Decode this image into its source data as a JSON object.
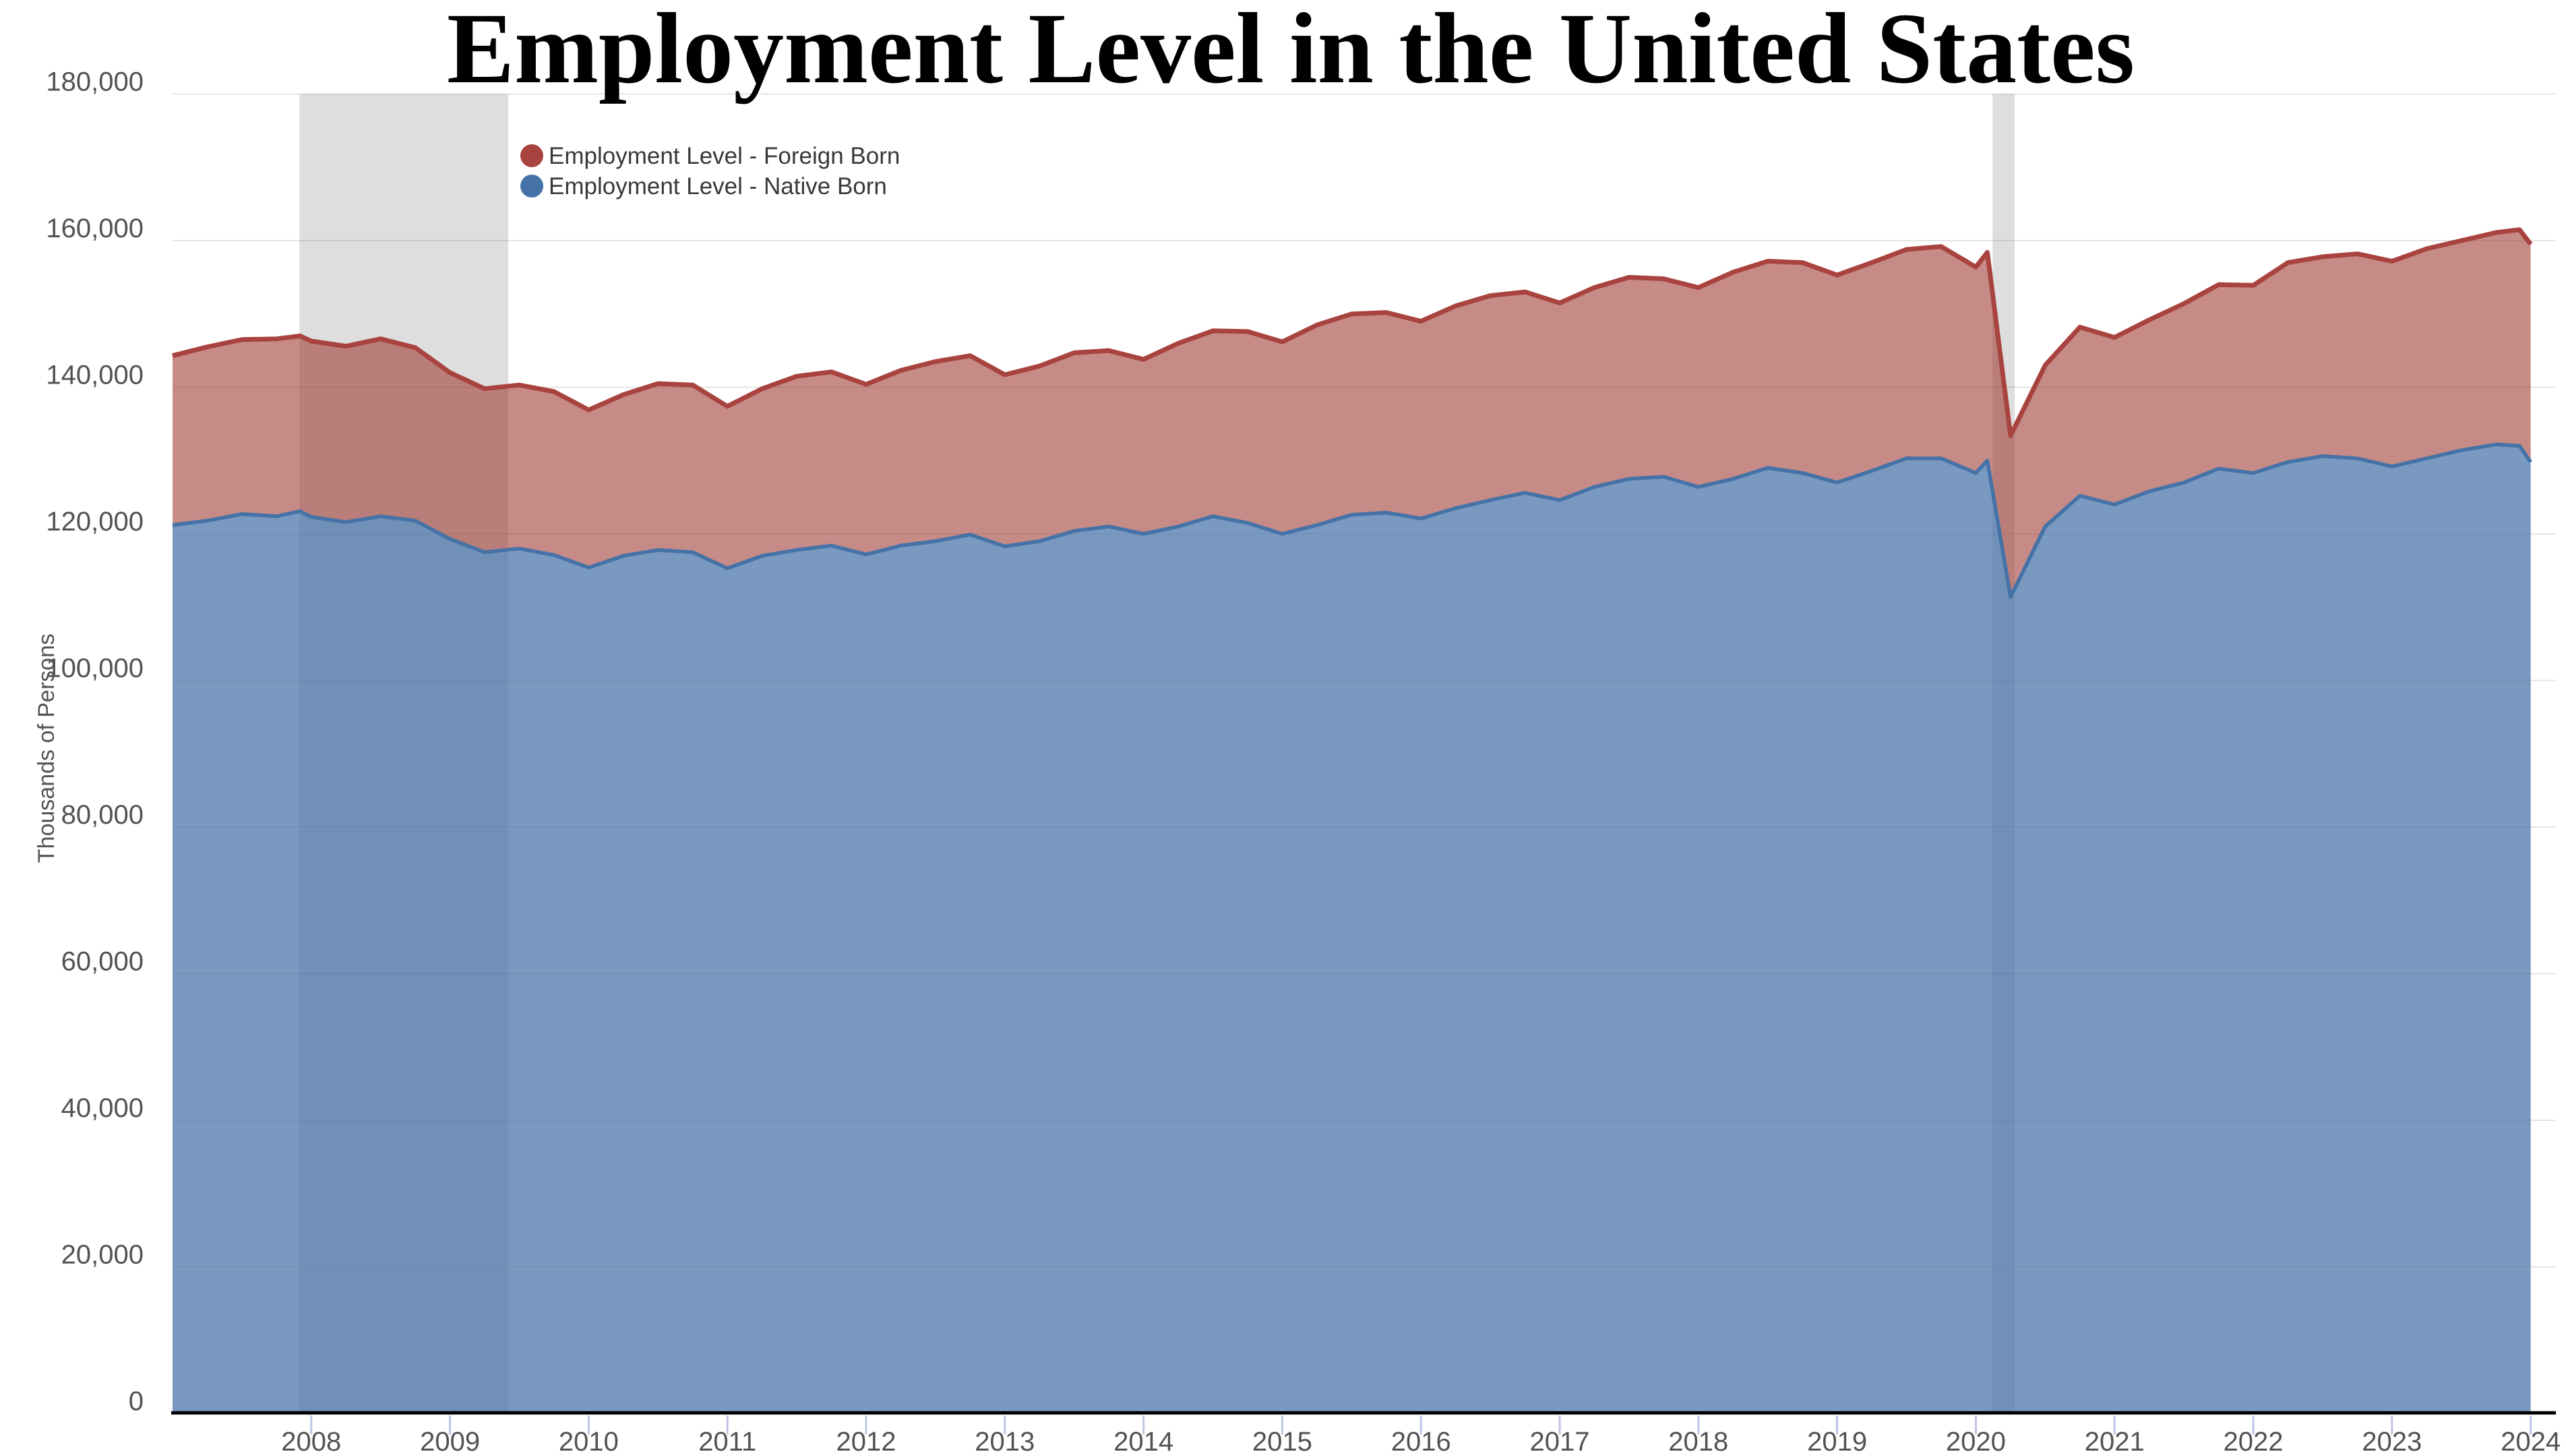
{
  "title": "Employment Level in the United States",
  "y_axis": {
    "title": "Thousands of Persons",
    "ticks": [
      0,
      20000,
      40000,
      60000,
      80000,
      100000,
      120000,
      140000,
      160000,
      180000
    ],
    "tick_labels": [
      "0",
      "20,000",
      "40,000",
      "60,000",
      "80,000",
      "100,000",
      "120,000",
      "140,000",
      "160,000",
      "180,000"
    ],
    "max": 180000
  },
  "x_axis": {
    "ticks": [
      2008,
      2009,
      2010,
      2011,
      2012,
      2013,
      2014,
      2015,
      2016,
      2017,
      2018,
      2019,
      2020,
      2021,
      2022,
      2023,
      2024
    ],
    "tick_labels": [
      "2008",
      "2009",
      "2010",
      "2011",
      "2012",
      "2013",
      "2014",
      "2015",
      "2016",
      "2017",
      "2018",
      "2019",
      "2020",
      "2021",
      "2022",
      "2023",
      "2024"
    ]
  },
  "legend": [
    {
      "label": "Employment Level - Foreign Born",
      "color": "#a8433f"
    },
    {
      "label": "Employment Level - Native Born",
      "color": "#4572a7"
    }
  ],
  "colors": {
    "foreign_line": "#a8433f",
    "foreign_fill_rgba": "rgba(164,67,62,0.62)",
    "native_line": "#4572a7",
    "native_fill_rgba": "rgba(69,114,167,0.72)",
    "recession_band_rgba": "rgba(100,100,100,0.21)",
    "gridline": "#e4e4e4",
    "axis_line": "#000000",
    "tick_mark": "#bec5e4",
    "label_text": "#525252"
  },
  "recessions": [
    {
      "start": 2007.915,
      "end": 2009.42
    },
    {
      "start": 2020.12,
      "end": 2020.28
    }
  ],
  "chart_data": {
    "type": "area",
    "stacked": true,
    "title": "Employment Level in the United States",
    "xlabel": "",
    "ylabel": "Thousands of Persons",
    "ylim": [
      0,
      180000
    ],
    "xlim": [
      2007.0,
      2024.35
    ],
    "grid": true,
    "legend_position": "top-left-inside",
    "x": [
      2007.0,
      2007.25,
      2007.5,
      2007.75,
      2007.92,
      2008.0,
      2008.25,
      2008.5,
      2008.75,
      2009.0,
      2009.25,
      2009.5,
      2009.75,
      2010.0,
      2010.25,
      2010.5,
      2010.75,
      2011.0,
      2011.25,
      2011.5,
      2011.75,
      2012.0,
      2012.25,
      2012.5,
      2012.75,
      2013.0,
      2013.25,
      2013.5,
      2013.75,
      2014.0,
      2014.25,
      2014.5,
      2014.75,
      2015.0,
      2015.25,
      2015.5,
      2015.75,
      2016.0,
      2016.25,
      2016.5,
      2016.75,
      2017.0,
      2017.25,
      2017.5,
      2017.75,
      2018.0,
      2018.25,
      2018.5,
      2018.75,
      2019.0,
      2019.25,
      2019.5,
      2019.75,
      2020.0,
      2020.083,
      2020.25,
      2020.5,
      2020.75,
      2021.0,
      2021.25,
      2021.5,
      2021.75,
      2022.0,
      2022.25,
      2022.5,
      2022.75,
      2023.0,
      2023.25,
      2023.5,
      2023.75,
      2023.92,
      2024.0
    ],
    "series": [
      {
        "name": "Employment Level - Native Born",
        "values": [
          121200,
          121800,
          122700,
          122400,
          123100,
          122300,
          121600,
          122400,
          121800,
          119300,
          117500,
          118000,
          117100,
          115400,
          117000,
          117800,
          117500,
          115300,
          117000,
          117800,
          118400,
          117200,
          118400,
          119000,
          119900,
          118300,
          119000,
          120400,
          121000,
          120000,
          121000,
          122400,
          121500,
          120000,
          121200,
          122600,
          122900,
          122100,
          123500,
          124600,
          125600,
          124600,
          126400,
          127500,
          127800,
          126400,
          127500,
          129000,
          128300,
          127000,
          128600,
          130300,
          130300,
          128300,
          130000,
          111400,
          121000,
          125200,
          124000,
          125800,
          127000,
          128900,
          128300,
          129800,
          130600,
          130300,
          129200,
          130300,
          131400,
          132200,
          132000,
          129800
        ]
      },
      {
        "name": "Employment Level - Foreign Born",
        "values": [
          23100,
          23700,
          23800,
          24200,
          23900,
          24000,
          24000,
          24200,
          23600,
          22700,
          22300,
          22300,
          22300,
          21500,
          22000,
          22700,
          22800,
          22100,
          22800,
          23700,
          23700,
          23200,
          23900,
          24500,
          24400,
          23400,
          23900,
          24300,
          24000,
          23800,
          25000,
          25300,
          26100,
          26200,
          27300,
          27400,
          27300,
          26900,
          27600,
          27900,
          27400,
          26900,
          27200,
          27500,
          27000,
          27200,
          28200,
          28200,
          28700,
          28300,
          28400,
          28500,
          28900,
          28100,
          28400,
          22000,
          22000,
          23000,
          22800,
          23400,
          24400,
          25100,
          25600,
          27200,
          27200,
          27900,
          28000,
          28600,
          28600,
          28900,
          29500,
          29700
        ]
      }
    ]
  }
}
